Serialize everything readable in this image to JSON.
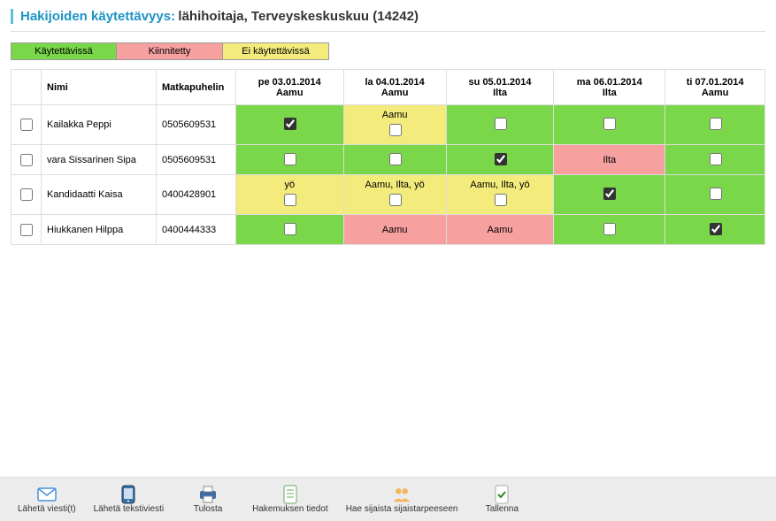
{
  "title": {
    "label": "Hakijoiden käytettävyys:",
    "value": "lähihoitaja, Terveyskeskuskuu (14242)"
  },
  "colors": {
    "available": "#79d749",
    "pinned": "#f7a0a0",
    "unavailable": "#f3eb7b"
  },
  "legend": [
    {
      "label": "Käytettävissä",
      "colorKey": "available"
    },
    {
      "label": "Kiinnitetty",
      "colorKey": "pinned"
    },
    {
      "label": "Ei käytettävissä",
      "colorKey": "unavailable"
    }
  ],
  "table": {
    "headers": {
      "name": "Nimi",
      "phone": "Matkapuhelin"
    },
    "days": [
      {
        "date": "pe 03.01.2014",
        "slot": "Aamu"
      },
      {
        "date": "la 04.01.2014",
        "slot": "Aamu"
      },
      {
        "date": "su 05.01.2014",
        "slot": "Ilta"
      },
      {
        "date": "ma 06.01.2014",
        "slot": "Ilta"
      },
      {
        "date": "ti 07.01.2014",
        "slot": "Aamu"
      }
    ],
    "rows": [
      {
        "name": "Kailakka Peppi",
        "phone": "0505609531",
        "selected": false,
        "cells": [
          {
            "state": "available",
            "label": "",
            "hasCheckbox": true,
            "checked": true
          },
          {
            "state": "unavailable",
            "label": "Aamu",
            "hasCheckbox": true,
            "checked": false
          },
          {
            "state": "available",
            "label": "",
            "hasCheckbox": true,
            "checked": false
          },
          {
            "state": "available",
            "label": "",
            "hasCheckbox": true,
            "checked": false
          },
          {
            "state": "available",
            "label": "",
            "hasCheckbox": true,
            "checked": false
          }
        ]
      },
      {
        "name": "vara Sissarinen Sipa",
        "phone": "0505609531",
        "selected": false,
        "cells": [
          {
            "state": "available",
            "label": "",
            "hasCheckbox": true,
            "checked": false
          },
          {
            "state": "available",
            "label": "",
            "hasCheckbox": true,
            "checked": false
          },
          {
            "state": "available",
            "label": "",
            "hasCheckbox": true,
            "checked": true
          },
          {
            "state": "pinned",
            "label": "Ilta",
            "hasCheckbox": false,
            "checked": false
          },
          {
            "state": "available",
            "label": "",
            "hasCheckbox": true,
            "checked": false
          }
        ]
      },
      {
        "name": "Kandidaatti Kaisa",
        "phone": "0400428901",
        "selected": false,
        "cells": [
          {
            "state": "unavailable",
            "label": "yö",
            "hasCheckbox": true,
            "checked": false
          },
          {
            "state": "unavailable",
            "label": "Aamu, Ilta, yö",
            "hasCheckbox": true,
            "checked": false
          },
          {
            "state": "unavailable",
            "label": "Aamu, Ilta, yö",
            "hasCheckbox": true,
            "checked": false
          },
          {
            "state": "available",
            "label": "",
            "hasCheckbox": true,
            "checked": true
          },
          {
            "state": "available",
            "label": "",
            "hasCheckbox": true,
            "checked": false
          }
        ]
      },
      {
        "name": "Hiukkanen Hilppa",
        "phone": "0400444333",
        "selected": false,
        "cells": [
          {
            "state": "available",
            "label": "",
            "hasCheckbox": true,
            "checked": false
          },
          {
            "state": "pinned",
            "label": "Aamu",
            "hasCheckbox": false,
            "checked": false
          },
          {
            "state": "pinned",
            "label": "Aamu",
            "hasCheckbox": false,
            "checked": false
          },
          {
            "state": "available",
            "label": "",
            "hasCheckbox": true,
            "checked": false
          },
          {
            "state": "available",
            "label": "",
            "hasCheckbox": true,
            "checked": true
          }
        ]
      }
    ]
  },
  "toolbar": [
    {
      "id": "send-message",
      "label": "Lähetä viesti(t)",
      "icon": "mail"
    },
    {
      "id": "send-sms",
      "label": "Lähetä tekstiviesti",
      "icon": "sms"
    },
    {
      "id": "print",
      "label": "Tulosta",
      "icon": "print"
    },
    {
      "id": "application-details",
      "label": "Hakemuksen tiedot",
      "icon": "doc"
    },
    {
      "id": "find-substitute",
      "label": "Hae sijaista sijaistarpeeseen",
      "icon": "people"
    },
    {
      "id": "save",
      "label": "Tallenna",
      "icon": "save"
    }
  ]
}
